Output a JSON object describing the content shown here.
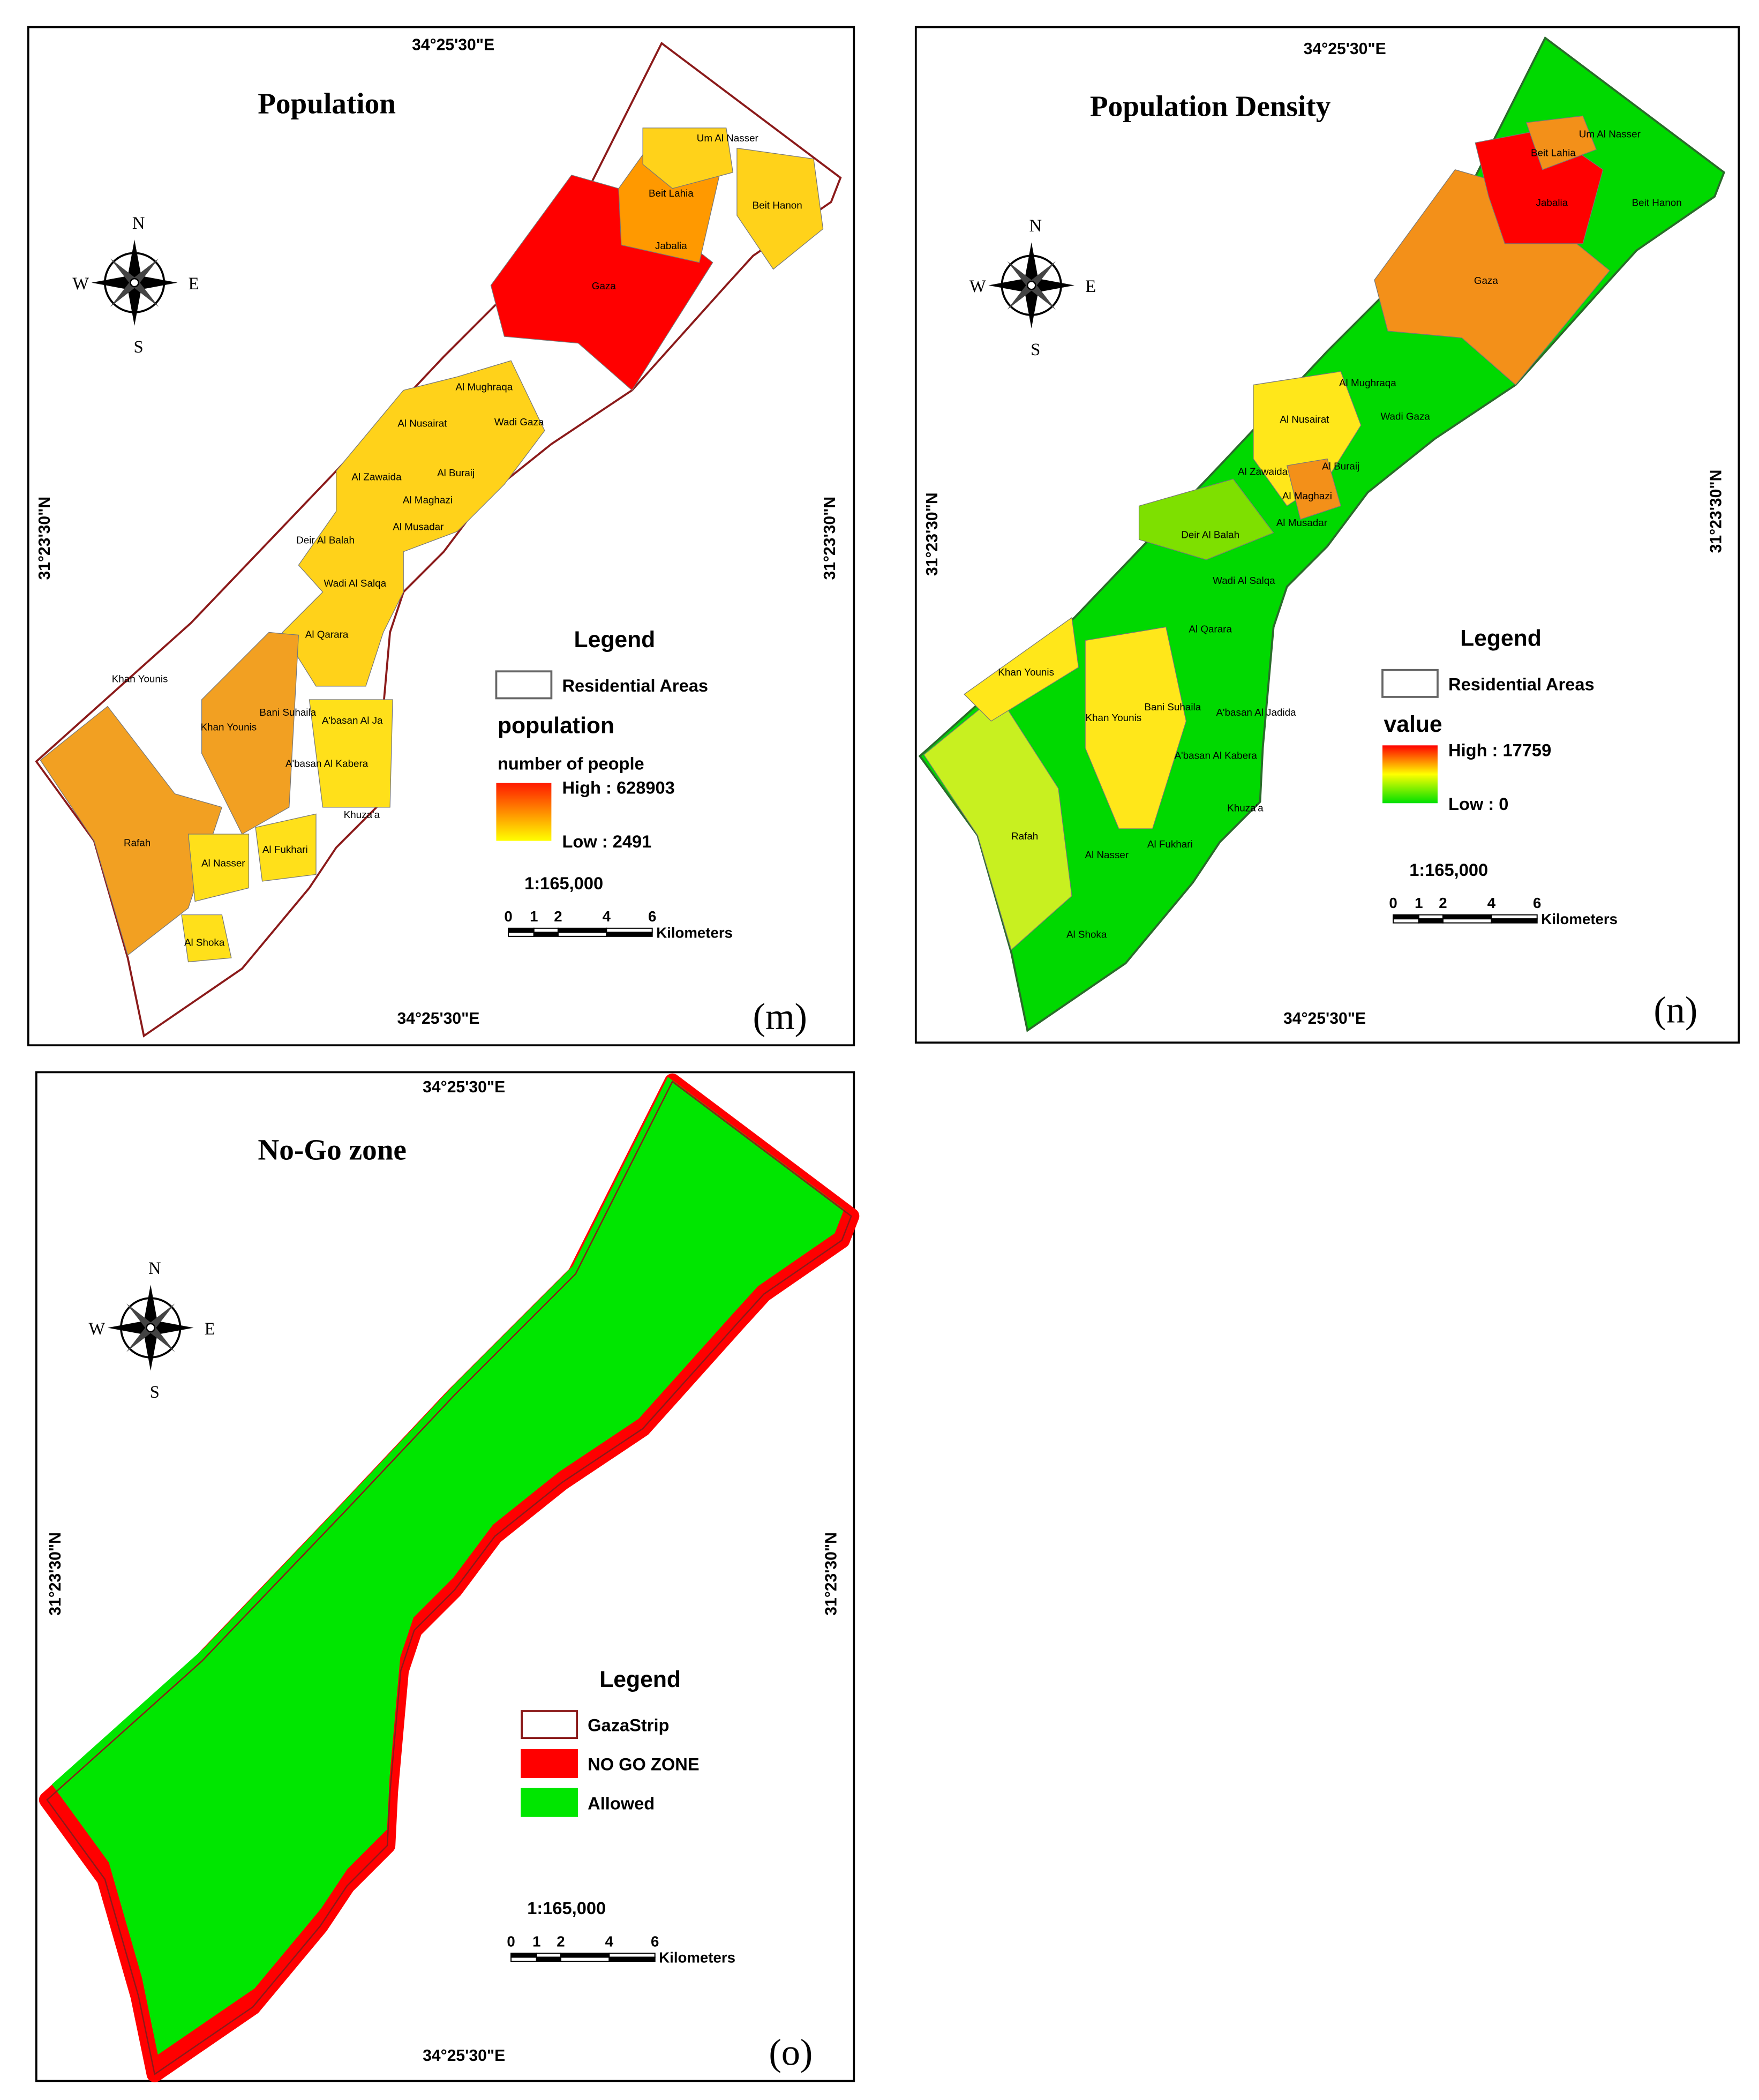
{
  "panels": [
    {
      "title": "Population",
      "coords": {
        "top": "34°25'30\"E",
        "bottom": "34°25'30\"E",
        "left": "31°23'30\"N",
        "right": "31°23'30\"N"
      },
      "compass": {
        "n": "N",
        "s": "S",
        "w": "W",
        "e": "E"
      },
      "districts": [
        "Um Al Nasser",
        "Beit Lahia",
        "Jabalia",
        "Beit Hanon",
        "Gaza",
        "Al Mughraqa",
        "Al Nusairat",
        "Wadi Gaza",
        "Al Zawaida",
        "Al Buraij",
        "Al Maghazi",
        "Al Musadar",
        "Deir Al Balah",
        "Wadi Al Salqa",
        "Al Qarara",
        "Khan Younis",
        "Bani Suhaila",
        "Khan Younis",
        "A'basan Al Ja",
        "A'basan Al Kabera",
        "Khuza'a",
        "Rafah",
        "Al Nasser",
        "Al Fukhari",
        "Al Shoka"
      ],
      "legend": {
        "title": "Legend",
        "items": [
          "Residential Areas"
        ],
        "ramp_title": "population",
        "ramp_subtitle": "number of people",
        "high": "High : 628903",
        "low": "Low : 2491"
      },
      "scale": "1:165,000",
      "scale_ticks": [
        "0",
        "1",
        "2",
        "4",
        "6"
      ],
      "scale_unit": "Kilometers",
      "label": "(m)"
    },
    {
      "title": "Population Density",
      "coords": {
        "top": "34°25'30\"E",
        "bottom": "34°25'30\"E",
        "left": "31°23'30\"N",
        "right": "31°23'30\"N"
      },
      "compass": {
        "n": "N",
        "s": "S",
        "w": "W",
        "e": "E"
      },
      "districts": [
        "Um Al Nasser",
        "Beit Lahia",
        "Jabalia",
        "Beit Hanon",
        "Gaza",
        "Al Mughraqa",
        "Al Nusairat",
        "Wadi Gaza",
        "Al Zawaida",
        "Al Buraij",
        "Al Maghazi",
        "Al Musadar",
        "Deir Al Balah",
        "Wadi Al Salqa",
        "Al Qarara",
        "Khan Younis",
        "Bani Suhaila",
        "Khan Younis",
        "A'basan Al Jadida",
        "A'basan Al Kabera",
        "Khuza'a",
        "Rafah",
        "Al Nasser",
        "Al Fukhari",
        "Al Shoka"
      ],
      "legend": {
        "title": "Legend",
        "items": [
          "Residential Areas"
        ],
        "ramp_title": "value",
        "high": "High : 17759",
        "low": "Low : 0"
      },
      "scale": "1:165,000",
      "scale_ticks": [
        "0",
        "1",
        "2",
        "4",
        "6"
      ],
      "scale_unit": "Kilometers",
      "label": "(n)"
    },
    {
      "title": "No-Go zone",
      "coords": {
        "top": "34°25'30\"E",
        "bottom": "34°25'30\"E",
        "left": "31°23'30\"N",
        "right": "31°23'30\"N"
      },
      "compass": {
        "n": "N",
        "s": "S",
        "w": "W",
        "e": "E"
      },
      "districts": [],
      "legend": {
        "title": "Legend",
        "items": [
          "GazaStrip",
          "NO GO ZONE",
          "Allowed"
        ]
      },
      "scale": "1:165,000",
      "scale_ticks": [
        "0",
        "1",
        "2",
        "4",
        "6"
      ],
      "scale_unit": "Kilometers",
      "label": "(o)"
    }
  ]
}
